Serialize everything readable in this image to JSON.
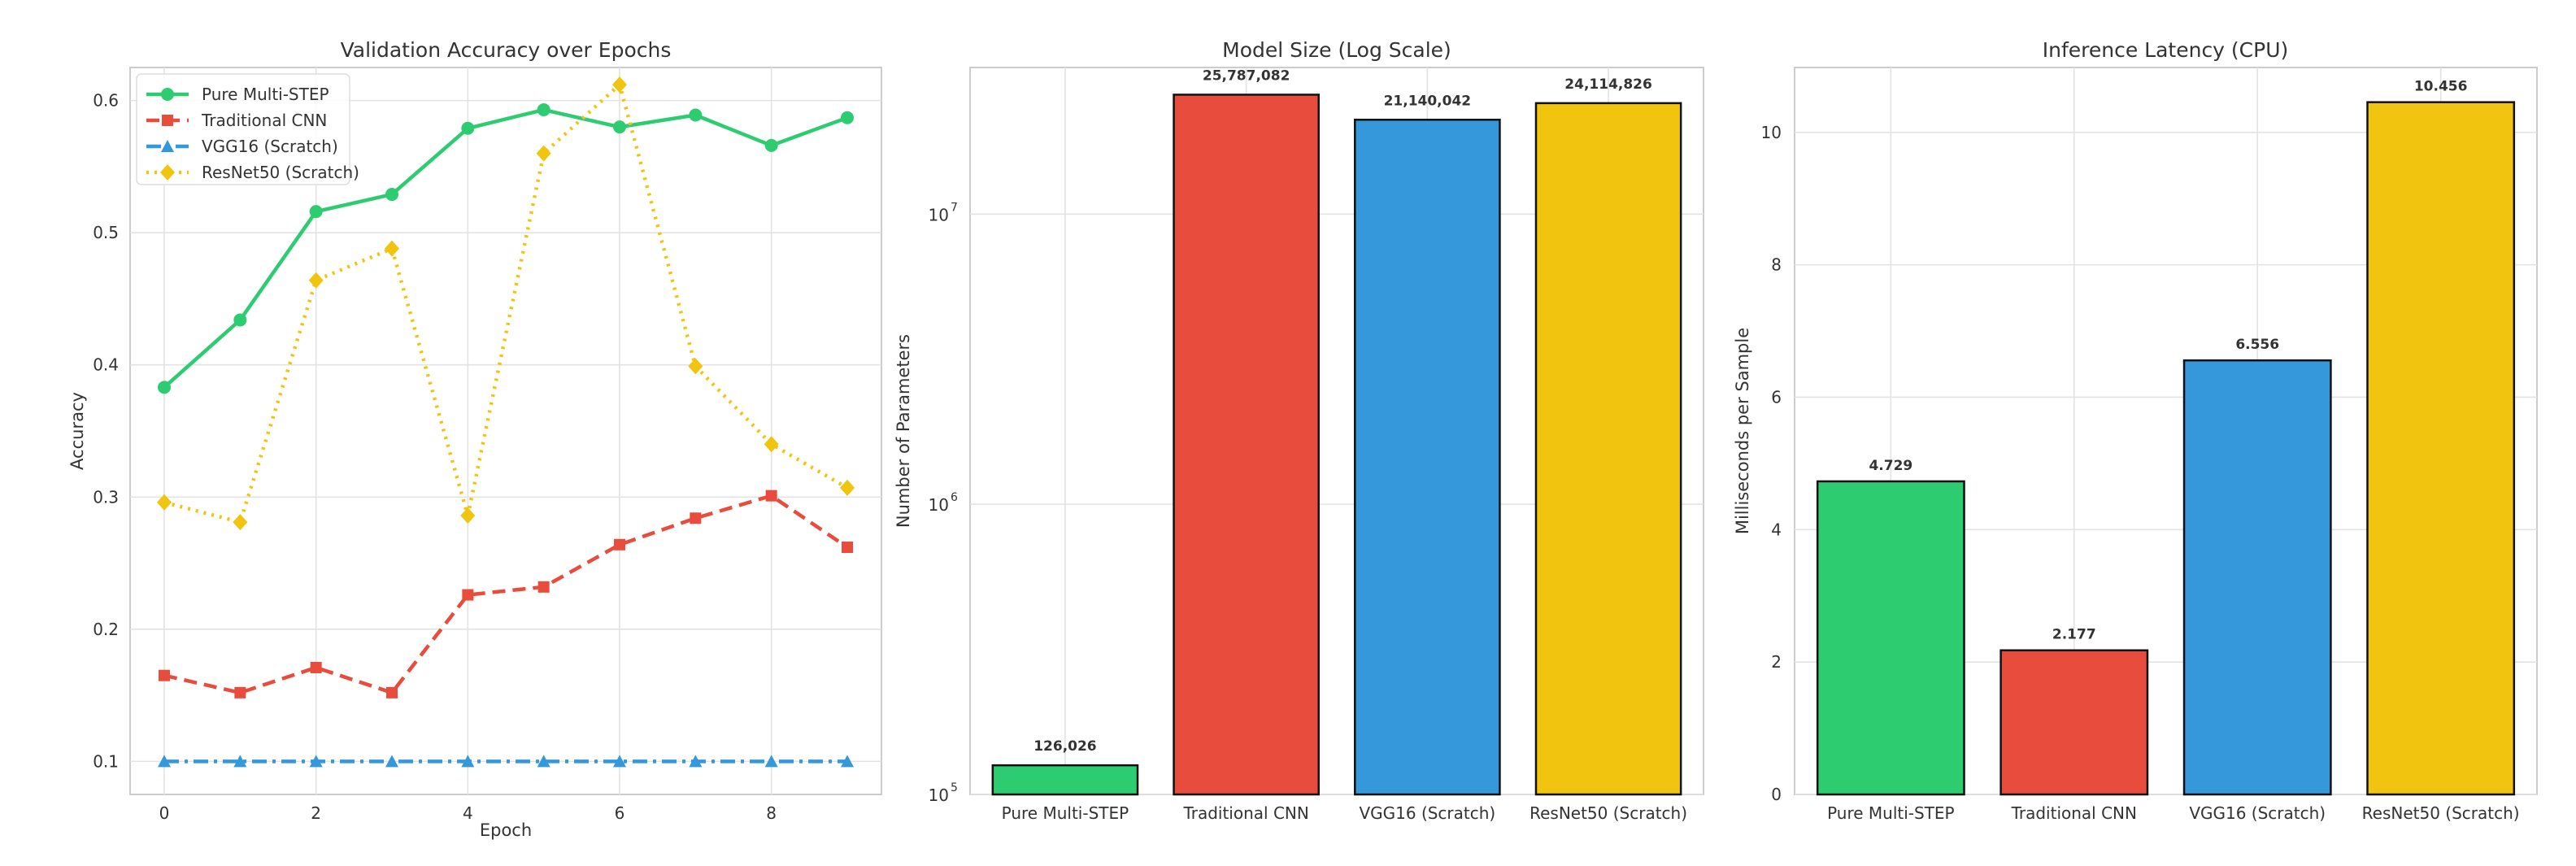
{
  "chart_data": [
    {
      "type": "line",
      "title": "Validation Accuracy over Epochs",
      "xlabel": "Epoch",
      "ylabel": "Accuracy",
      "x": [
        0,
        1,
        2,
        3,
        4,
        5,
        6,
        7,
        8,
        9
      ],
      "xticks": [
        "0",
        "2",
        "4",
        "6",
        "8"
      ],
      "yticks": [
        "0.1",
        "0.2",
        "0.3",
        "0.4",
        "0.5",
        "0.6"
      ],
      "xlim": [
        -0.45,
        9.45
      ],
      "ylim": [
        0.075,
        0.625
      ],
      "grid": true,
      "legend": "top-left",
      "series": [
        {
          "name": "Pure Multi-STEP",
          "color": "#2ecc71",
          "style": "solid",
          "marker": "circle",
          "values": [
            0.383,
            0.434,
            0.516,
            0.529,
            0.579,
            0.593,
            0.58,
            0.589,
            0.566,
            0.587
          ]
        },
        {
          "name": "Traditional CNN",
          "color": "#e74c3c",
          "style": "dashed",
          "marker": "square",
          "values": [
            0.165,
            0.152,
            0.171,
            0.152,
            0.226,
            0.232,
            0.264,
            0.284,
            0.301,
            0.262
          ]
        },
        {
          "name": "VGG16 (Scratch)",
          "color": "#3498db",
          "style": "dashdot",
          "marker": "triangle",
          "values": [
            0.1,
            0.1,
            0.1,
            0.1,
            0.1,
            0.1,
            0.1,
            0.1,
            0.1,
            0.1
          ]
        },
        {
          "name": "ResNet50 (Scratch)",
          "color": "#f1c40f",
          "style": "dotted",
          "marker": "diamond",
          "values": [
            0.296,
            0.281,
            0.464,
            0.488,
            0.286,
            0.56,
            0.612,
            0.399,
            0.34,
            0.307
          ]
        }
      ]
    },
    {
      "type": "bar",
      "title": "Model Size (Log Scale)",
      "xlabel": "",
      "ylabel": "Number of Parameters",
      "yscale": "log",
      "ylim": [
        100000,
        32000000
      ],
      "yticks": [
        {
          "value": 100000,
          "base": "10",
          "exp": "5"
        },
        {
          "value": 1000000,
          "base": "10",
          "exp": "6"
        },
        {
          "value": 10000000,
          "base": "10",
          "exp": "7"
        }
      ],
      "grid": true,
      "categories": [
        "Pure Multi-STEP",
        "Traditional CNN",
        "VGG16 (Scratch)",
        "ResNet50 (Scratch)"
      ],
      "values": [
        126026,
        25787082,
        21140042,
        24114826
      ],
      "value_labels": [
        "126,026",
        "25,787,082",
        "21,140,042",
        "24,114,826"
      ],
      "colors": [
        "#2ecc71",
        "#e74c3c",
        "#3498db",
        "#f1c40f"
      ]
    },
    {
      "type": "bar",
      "title": "Inference Latency (CPU)",
      "xlabel": "",
      "ylabel": "Milliseconds per Sample",
      "ylim": [
        0,
        10.98
      ],
      "yticks": [
        "0",
        "2",
        "4",
        "6",
        "8",
        "10"
      ],
      "grid": true,
      "categories": [
        "Pure Multi-STEP",
        "Traditional CNN",
        "VGG16 (Scratch)",
        "ResNet50 (Scratch)"
      ],
      "values": [
        4.729,
        2.177,
        6.556,
        10.456
      ],
      "value_labels": [
        "4.729",
        "2.177",
        "6.556",
        "10.456"
      ],
      "colors": [
        "#2ecc71",
        "#e74c3c",
        "#3498db",
        "#f1c40f"
      ]
    }
  ]
}
